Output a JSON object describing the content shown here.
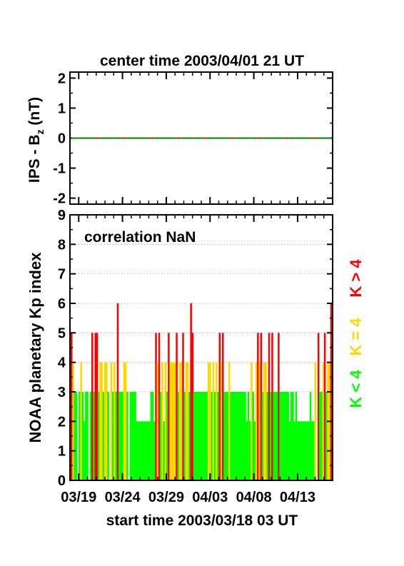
{
  "chart_data": [
    {
      "type": "line",
      "title": "center time 2003/04/01 21 UT",
      "ylabel_main": "IPS - B",
      "ylabel_sub": "z",
      "ylabel_unit": " (nT)",
      "ylim": [
        -2.2,
        2.2
      ],
      "yticks": [
        "2",
        "1",
        "0",
        "-1",
        "-2"
      ],
      "ytick_values": [
        2,
        1,
        0,
        -1,
        -2
      ],
      "series": [
        {
          "values_constant": 0,
          "color": "#ff0000"
        },
        {
          "values_constant": 0,
          "color": "#008000",
          "style": "dashed"
        }
      ]
    },
    {
      "type": "bar",
      "annotation": "correlation NaN",
      "ylabel": "NOAA planetary Kp index",
      "xlabel": "start time 2003/03/18 03 UT",
      "ylim": [
        0,
        9
      ],
      "yticks": [
        "0",
        "1",
        "2",
        "3",
        "4",
        "5",
        "6",
        "7",
        "8",
        "9"
      ],
      "xtick_labels": [
        "03/19",
        "03/24",
        "03/29",
        "04/03",
        "04/08",
        "04/13"
      ],
      "xtick_days": [
        1,
        6,
        11,
        16,
        21,
        26
      ],
      "x_days_range": [
        0,
        30
      ],
      "legend": [
        {
          "label": "K < 4",
          "color": "#00ff00"
        },
        {
          "label": "K = 4",
          "color": "#ffd700"
        },
        {
          "label": "K > 4",
          "color": "#ff0000"
        }
      ],
      "grid": "dotted horizontal",
      "kp_values": [
        5,
        4,
        3,
        3,
        0,
        3,
        4,
        3,
        2,
        3,
        3,
        0,
        3,
        5,
        3,
        5,
        5,
        3,
        4,
        4,
        3,
        4,
        4,
        3,
        0,
        4,
        3,
        4,
        3,
        6,
        3,
        3,
        3,
        4,
        4,
        3,
        0,
        3,
        3,
        3,
        3,
        2,
        2,
        2,
        2,
        2,
        2,
        2,
        2,
        2,
        3,
        3,
        2,
        5,
        4,
        5,
        3,
        4,
        2,
        4,
        3,
        5,
        4,
        4,
        4,
        4,
        5,
        3,
        4,
        4,
        5,
        3,
        4,
        4,
        3,
        6,
        5,
        3,
        3,
        3,
        3,
        3,
        3,
        3,
        3,
        3,
        4,
        4,
        3,
        4,
        3,
        4,
        3,
        5,
        4,
        5,
        3,
        3,
        3,
        4,
        3,
        3,
        3,
        3,
        3,
        3,
        3,
        3,
        3,
        3,
        2,
        3,
        2,
        4,
        3,
        2,
        4,
        5,
        4,
        5,
        3,
        4,
        4,
        3,
        5,
        3,
        5,
        3,
        3,
        3,
        5,
        3,
        3,
        3,
        3,
        3,
        3,
        2,
        3,
        3,
        2,
        3,
        2,
        2,
        2,
        2,
        2,
        2,
        2,
        2,
        3,
        2,
        2,
        4,
        0,
        5,
        3,
        3,
        4,
        5,
        3,
        4,
        4,
        6
      ]
    }
  ]
}
